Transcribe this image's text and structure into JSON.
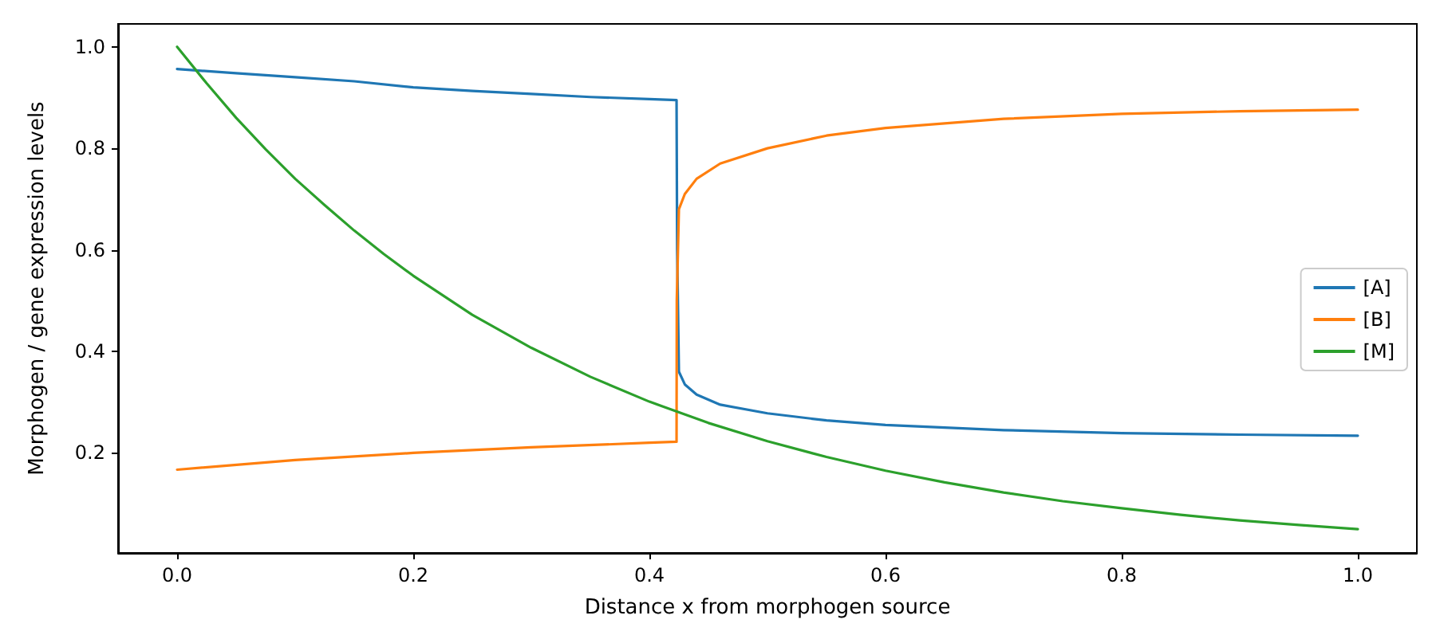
{
  "chart_data": {
    "type": "line",
    "xlabel": "Distance x from morphogen source",
    "ylabel": "Morphogen / gene expression levels",
    "xlim": [
      -0.05,
      1.05
    ],
    "xticks": [
      {
        "value": 0,
        "label": "0.0"
      },
      0.2,
      0.4,
      0.6,
      0.8,
      {
        "value": 1,
        "label": "1.0"
      }
    ],
    "ylim": [
      0.003,
      1.045
    ],
    "yticks": [
      0.2,
      0.4,
      0.6,
      0.8,
      {
        "value": 1,
        "label": "1.0"
      }
    ],
    "grid": false,
    "legend": "right",
    "marker": "none",
    "line_style": "solid",
    "series": [
      {
        "name": "[A]",
        "color": "#1f77b4",
        "x": [
          0,
          0.05,
          0.1,
          0.15,
          0.2,
          0.25,
          0.3,
          0.35,
          0.4,
          0.423,
          0.4235,
          0.425,
          0.43,
          0.44,
          0.46,
          0.5,
          0.55,
          0.6,
          0.7,
          0.8,
          0.9,
          1.0
        ],
        "values": [
          0.956,
          0.948,
          0.94,
          0.932,
          0.92,
          0.913,
          0.907,
          0.901,
          0.897,
          0.895,
          0.6,
          0.36,
          0.335,
          0.315,
          0.295,
          0.278,
          0.264,
          0.255,
          0.245,
          0.239,
          0.236,
          0.234
        ]
      },
      {
        "name": "[B]",
        "color": "#ff7f0e",
        "x": [
          0,
          0.1,
          0.2,
          0.3,
          0.4,
          0.423,
          0.4232,
          0.425,
          0.43,
          0.44,
          0.46,
          0.5,
          0.55,
          0.6,
          0.7,
          0.8,
          0.9,
          1.0
        ],
        "values": [
          0.167,
          0.186,
          0.2,
          0.211,
          0.22,
          0.222,
          0.5,
          0.68,
          0.71,
          0.74,
          0.77,
          0.8,
          0.825,
          0.84,
          0.858,
          0.868,
          0.873,
          0.876
        ]
      },
      {
        "name": "[M]",
        "color": "#2ca02c",
        "x": [
          0,
          0.025,
          0.05,
          0.075,
          0.1,
          0.125,
          0.15,
          0.175,
          0.2,
          0.25,
          0.3,
          0.35,
          0.4,
          0.45,
          0.5,
          0.55,
          0.6,
          0.65,
          0.7,
          0.75,
          0.8,
          0.85,
          0.9,
          0.95,
          1.0
        ],
        "values": [
          1.0,
          0.928,
          0.86,
          0.798,
          0.74,
          0.688,
          0.638,
          0.592,
          0.549,
          0.472,
          0.407,
          0.35,
          0.301,
          0.259,
          0.223,
          0.192,
          0.165,
          0.142,
          0.122,
          0.105,
          0.091,
          0.078,
          0.067,
          0.058,
          0.05
        ]
      }
    ]
  }
}
